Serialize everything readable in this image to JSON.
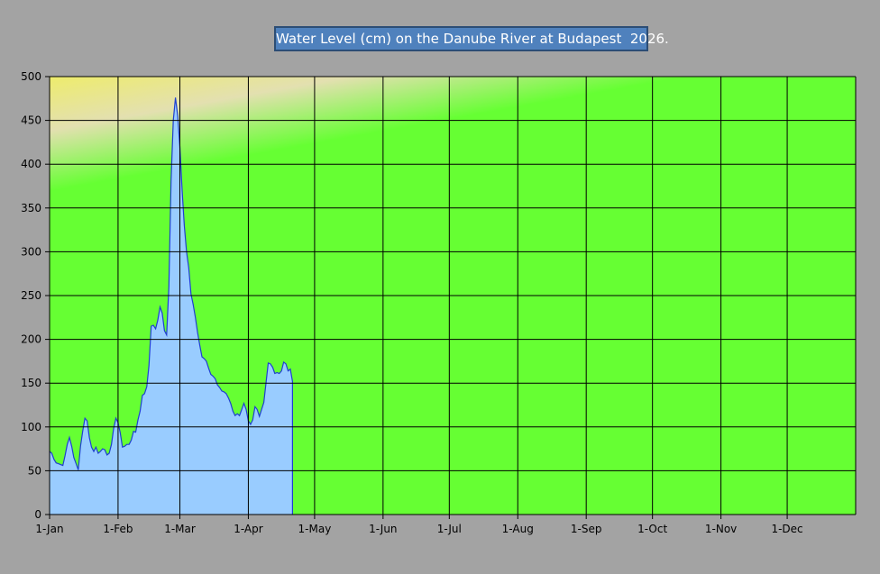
{
  "chart_data": {
    "type": "area",
    "title": "Water Level (cm) on the Danube River at Budapest  2026.",
    "xlabel": "",
    "ylabel": "",
    "ylim": [
      0,
      500
    ],
    "yticks": [
      0,
      50,
      100,
      150,
      200,
      250,
      300,
      350,
      400,
      450,
      500
    ],
    "xlim": [
      "2026-01-01",
      "2026-12-31"
    ],
    "xticks": [
      {
        "date": "2026-01-01",
        "label": "1-Jan"
      },
      {
        "date": "2026-02-01",
        "label": "1-Feb"
      },
      {
        "date": "2026-03-01",
        "label": "1-Mar"
      },
      {
        "date": "2026-04-01",
        "label": "1-Apr"
      },
      {
        "date": "2026-05-01",
        "label": "1-May"
      },
      {
        "date": "2026-06-01",
        "label": "1-Jun"
      },
      {
        "date": "2026-07-01",
        "label": "1-Jul"
      },
      {
        "date": "2026-08-01",
        "label": "1-Aug"
      },
      {
        "date": "2026-09-01",
        "label": "1-Sep"
      },
      {
        "date": "2026-10-01",
        "label": "1-Oct"
      },
      {
        "date": "2026-11-01",
        "label": "1-Nov"
      },
      {
        "date": "2026-12-01",
        "label": "1-Dec"
      }
    ],
    "grid": true,
    "legend": "none",
    "colors": {
      "area_fill": "#99ccff",
      "area_line": "#1f3fd0",
      "background_low": "#66ff33",
      "background_mid": "#e3e0b0",
      "background_high": "#ffff00",
      "page_background": "#a3a3a3",
      "title_box": "#4f81bd"
    },
    "series": [
      {
        "points": [
          [
            "2026-01-01",
            72
          ],
          [
            "2026-01-02",
            70
          ],
          [
            "2026-01-03",
            63
          ],
          [
            "2026-01-04",
            59
          ],
          [
            "2026-01-05",
            58
          ],
          [
            "2026-01-06",
            57
          ],
          [
            "2026-01-07",
            56
          ],
          [
            "2026-01-08",
            67
          ],
          [
            "2026-01-09",
            80
          ],
          [
            "2026-01-10",
            88
          ],
          [
            "2026-01-11",
            78
          ],
          [
            "2026-01-12",
            65
          ],
          [
            "2026-01-13",
            58
          ],
          [
            "2026-01-14",
            51
          ],
          [
            "2026-01-15",
            78
          ],
          [
            "2026-01-16",
            95
          ],
          [
            "2026-01-17",
            110
          ],
          [
            "2026-01-18",
            107
          ],
          [
            "2026-01-19",
            88
          ],
          [
            "2026-01-20",
            77
          ],
          [
            "2026-01-21",
            72
          ],
          [
            "2026-01-22",
            77
          ],
          [
            "2026-01-23",
            70
          ],
          [
            "2026-01-24",
            72
          ],
          [
            "2026-01-25",
            75
          ],
          [
            "2026-01-26",
            74
          ],
          [
            "2026-01-27",
            68
          ],
          [
            "2026-01-28",
            70
          ],
          [
            "2026-01-29",
            80
          ],
          [
            "2026-01-30",
            98
          ],
          [
            "2026-01-31",
            110
          ],
          [
            "2026-02-01",
            105
          ],
          [
            "2026-02-02",
            93
          ],
          [
            "2026-02-03",
            77
          ],
          [
            "2026-02-04",
            78
          ],
          [
            "2026-02-05",
            80
          ],
          [
            "2026-02-06",
            80
          ],
          [
            "2026-02-07",
            85
          ],
          [
            "2026-02-08",
            95
          ],
          [
            "2026-02-09",
            94
          ],
          [
            "2026-02-10",
            108
          ],
          [
            "2026-02-11",
            118
          ],
          [
            "2026-02-12",
            136
          ],
          [
            "2026-02-13",
            138
          ],
          [
            "2026-02-14",
            146
          ],
          [
            "2026-02-15",
            170
          ],
          [
            "2026-02-16",
            215
          ],
          [
            "2026-02-17",
            216
          ],
          [
            "2026-02-18",
            212
          ],
          [
            "2026-02-19",
            222
          ],
          [
            "2026-02-20",
            237
          ],
          [
            "2026-02-21",
            230
          ],
          [
            "2026-02-22",
            210
          ],
          [
            "2026-02-23",
            205
          ],
          [
            "2026-02-24",
            260
          ],
          [
            "2026-02-25",
            380
          ],
          [
            "2026-02-26",
            450
          ],
          [
            "2026-02-27",
            476
          ],
          [
            "2026-02-28",
            455
          ],
          [
            "2026-03-01",
            420
          ],
          [
            "2026-03-02",
            370
          ],
          [
            "2026-03-03",
            330
          ],
          [
            "2026-03-04",
            300
          ],
          [
            "2026-03-05",
            282
          ],
          [
            "2026-03-06",
            252
          ],
          [
            "2026-03-07",
            240
          ],
          [
            "2026-03-08",
            225
          ],
          [
            "2026-03-09",
            208
          ],
          [
            "2026-03-10",
            193
          ],
          [
            "2026-03-11",
            180
          ],
          [
            "2026-03-12",
            178
          ],
          [
            "2026-03-13",
            175
          ],
          [
            "2026-03-14",
            167
          ],
          [
            "2026-03-15",
            160
          ],
          [
            "2026-03-16",
            158
          ],
          [
            "2026-03-17",
            155
          ],
          [
            "2026-03-18",
            148
          ],
          [
            "2026-03-19",
            145
          ],
          [
            "2026-03-20",
            141
          ],
          [
            "2026-03-21",
            140
          ],
          [
            "2026-03-22",
            138
          ],
          [
            "2026-03-23",
            133
          ],
          [
            "2026-03-24",
            127
          ],
          [
            "2026-03-25",
            118
          ],
          [
            "2026-03-26",
            113
          ],
          [
            "2026-03-27",
            115
          ],
          [
            "2026-03-28",
            113
          ],
          [
            "2026-03-29",
            120
          ],
          [
            "2026-03-30",
            127
          ],
          [
            "2026-03-31",
            120
          ],
          [
            "2026-04-01",
            107
          ],
          [
            "2026-04-02",
            103
          ],
          [
            "2026-04-03",
            108
          ],
          [
            "2026-04-04",
            123
          ],
          [
            "2026-04-05",
            120
          ],
          [
            "2026-04-06",
            112
          ],
          [
            "2026-04-07",
            120
          ],
          [
            "2026-04-08",
            128
          ],
          [
            "2026-04-09",
            150
          ],
          [
            "2026-04-10",
            173
          ],
          [
            "2026-04-11",
            172
          ],
          [
            "2026-04-12",
            168
          ],
          [
            "2026-04-13",
            161
          ],
          [
            "2026-04-14",
            162
          ],
          [
            "2026-04-15",
            161
          ],
          [
            "2026-04-16",
            164
          ],
          [
            "2026-04-17",
            174
          ],
          [
            "2026-04-18",
            172
          ],
          [
            "2026-04-19",
            164
          ],
          [
            "2026-04-20",
            166
          ],
          [
            "2026-04-21",
            152
          ]
        ]
      }
    ]
  }
}
